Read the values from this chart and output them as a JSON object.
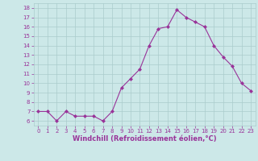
{
  "x": [
    0,
    1,
    2,
    3,
    4,
    5,
    6,
    7,
    8,
    9,
    10,
    11,
    12,
    13,
    14,
    15,
    16,
    17,
    18,
    19,
    20,
    21,
    22,
    23
  ],
  "y": [
    7,
    7,
    6,
    7,
    6.5,
    6.5,
    6.5,
    6,
    7,
    9.5,
    10.5,
    11.5,
    14,
    15.8,
    16,
    17.8,
    17,
    16.5,
    16,
    14,
    12.8,
    11.8,
    10,
    9.2
  ],
  "line_color": "#993399",
  "marker": "D",
  "marker_size": 2,
  "xlabel": "Windchill (Refroidissement éolien,°C)",
  "ylim": [
    5.5,
    18.5
  ],
  "yticks": [
    6,
    7,
    8,
    9,
    10,
    11,
    12,
    13,
    14,
    15,
    16,
    17,
    18
  ],
  "xlim": [
    -0.5,
    23.5
  ],
  "xticks": [
    0,
    1,
    2,
    3,
    4,
    5,
    6,
    7,
    8,
    9,
    10,
    11,
    12,
    13,
    14,
    15,
    16,
    17,
    18,
    19,
    20,
    21,
    22,
    23
  ],
  "bg_color": "#cce8e8",
  "grid_color": "#aacccc",
  "line_label_color": "#993399",
  "tick_fontsize": 5,
  "xlabel_fontsize": 6
}
